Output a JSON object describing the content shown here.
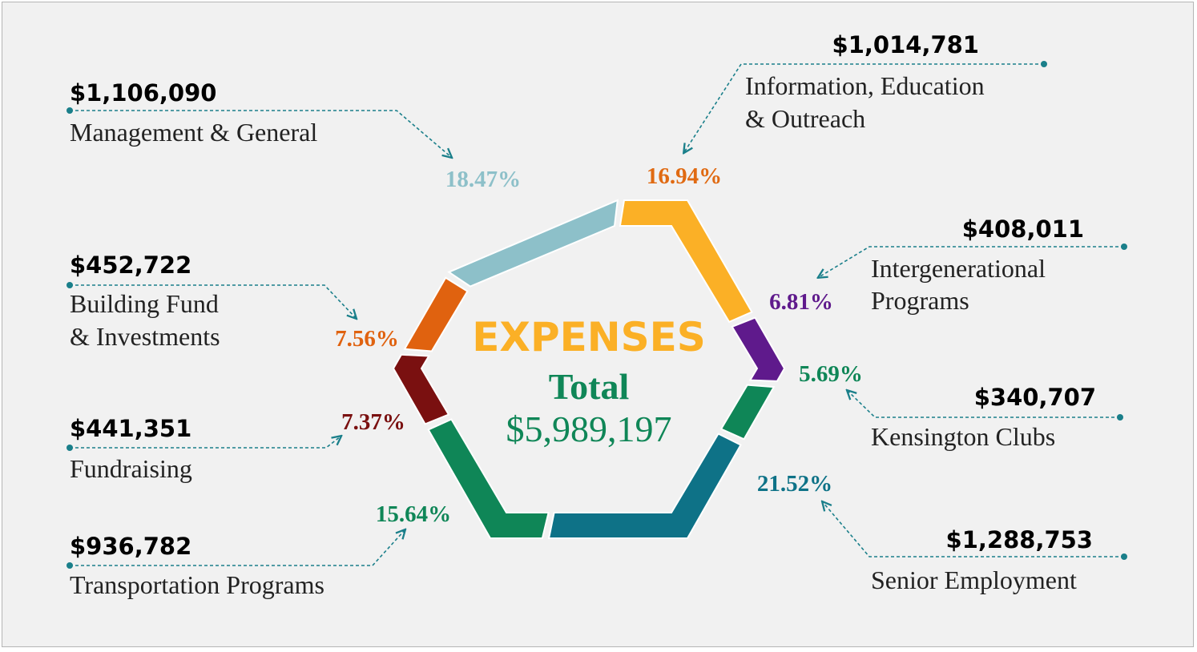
{
  "chart_data": {
    "type": "pie",
    "title": "EXPENSES",
    "subtitle": "Total",
    "total": "$5,989,197",
    "series": [
      {
        "name": "Management & General",
        "name_lines": [
          "Management & General"
        ],
        "amount": "$1,106,090",
        "percent": "18.47%",
        "value": 18.47,
        "color": "#8dc0c9"
      },
      {
        "name": "Information, Education & Outreach",
        "name_lines": [
          "Information, Education",
          "& Outreach"
        ],
        "amount": "$1,014,781",
        "percent": "16.94%",
        "value": 16.94,
        "color": "#fbb026",
        "label_color": "#e06a12"
      },
      {
        "name": "Intergenerational Programs",
        "name_lines": [
          "Intergenerational",
          "Programs"
        ],
        "amount": "$408,011",
        "percent": "6.81%",
        "value": 6.81,
        "color": "#5f1a8c"
      },
      {
        "name": "Kensington Clubs",
        "name_lines": [
          "Kensington Clubs"
        ],
        "amount": "$340,707",
        "percent": "5.69%",
        "value": 5.69,
        "color": "#0f8657"
      },
      {
        "name": "Senior Employment",
        "name_lines": [
          "Senior Employment"
        ],
        "amount": "$1,288,753",
        "percent": "21.52%",
        "value": 21.52,
        "color": "#0e7287"
      },
      {
        "name": "Transportation Programs",
        "name_lines": [
          "Transportation Programs"
        ],
        "amount": "$936,782",
        "percent": "15.64%",
        "value": 15.64,
        "color": "#0f8657"
      },
      {
        "name": "Fundraising",
        "name_lines": [
          "Fundraising"
        ],
        "amount": "$441,351",
        "percent": "7.37%",
        "value": 7.37,
        "color": "#7a1010"
      },
      {
        "name": "Building Fund & Investments",
        "name_lines": [
          "Building Fund",
          "& Investments"
        ],
        "amount": "$452,722",
        "percent": "7.56%",
        "value": 7.56,
        "color": "#e0620f"
      }
    ]
  },
  "colors": {
    "title": "#fbb026",
    "total": "#0f8657",
    "connector": "#1a7f8a",
    "text": "#222222",
    "background": "#f1f1f1"
  }
}
